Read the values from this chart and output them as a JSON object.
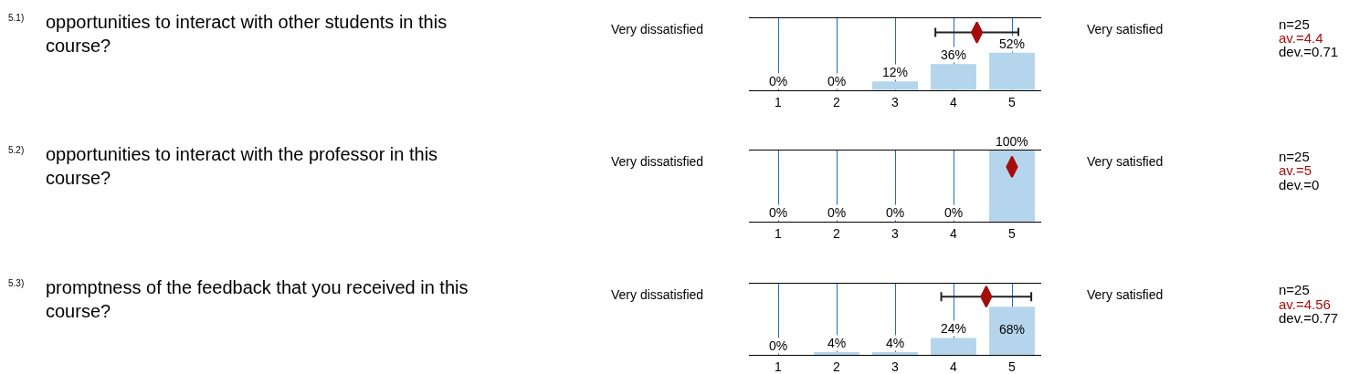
{
  "chart_data": [
    {
      "type": "bar",
      "x": [
        1,
        2,
        3,
        4,
        5
      ],
      "xlim": [
        0.5,
        5.5
      ],
      "xticks": [
        1,
        2,
        3,
        4,
        5
      ],
      "ylim": [
        0,
        100
      ],
      "grid": "x",
      "tick_labels": "x",
      "annotations": [
        "5.1)",
        "opportunities to interact with other students in this course?",
        "Very dissatisfied",
        "Very satisfied",
        "n=25",
        "av.=4.4",
        "dev.=0.71"
      ],
      "series": [
        {
          "color": "#b5d5ec",
          "values": [
            0,
            0,
            12,
            36,
            52
          ],
          "value_labels": [
            "0%",
            "0%",
            "12%",
            "36%",
            "52%"
          ]
        },
        {
          "type": "scatter",
          "marker": "diamond",
          "color": "#a50d0d",
          "x": [
            4.4
          ],
          "values": [
            80
          ],
          "xerrors": [
            0.71
          ]
        }
      ]
    },
    {
      "type": "bar",
      "x": [
        1,
        2,
        3,
        4,
        5
      ],
      "xlim": [
        0.5,
        5.5
      ],
      "xticks": [
        1,
        2,
        3,
        4,
        5
      ],
      "ylim": [
        0,
        100
      ],
      "grid": "x",
      "tick_labels": "x",
      "annotations": [
        "5.2)",
        "opportunities to interact with the professor in this course?",
        "Very dissatisfied",
        "Very satisfied",
        "n=25",
        "av.=5",
        "dev.=0"
      ],
      "series": [
        {
          "color": "#b5d5ec",
          "values": [
            0,
            0,
            0,
            0,
            100
          ],
          "value_labels": [
            "0%",
            "0%",
            "0%",
            "0%",
            "100%"
          ]
        },
        {
          "type": "scatter",
          "marker": "diamond",
          "color": "#a50d0d",
          "x": [
            5
          ],
          "values": [
            77
          ],
          "xerrors": [
            0
          ]
        }
      ]
    },
    {
      "type": "bar",
      "x": [
        1,
        2,
        3,
        4,
        5
      ],
      "xlim": [
        0.5,
        5.5
      ],
      "xticks": [
        1,
        2,
        3,
        4,
        5
      ],
      "ylim": [
        0,
        100
      ],
      "grid": "x",
      "tick_labels": "x",
      "annotations": [
        "5.3)",
        "promptness of the feedback that you received in this course?",
        "Very dissatisfied",
        "Very satisfied",
        "n=25",
        "av.=4.56",
        "dev.=0.77"
      ],
      "series": [
        {
          "color": "#b5d5ec",
          "values": [
            0,
            4,
            4,
            24,
            68
          ],
          "value_labels": [
            "0%",
            "4%",
            "4%",
            "24%",
            "68%"
          ]
        },
        {
          "type": "scatter",
          "marker": "diamond",
          "color": "#a50d0d",
          "x": [
            4.56
          ],
          "values": [
            82
          ],
          "xerrors": [
            0.77
          ]
        }
      ]
    }
  ]
}
